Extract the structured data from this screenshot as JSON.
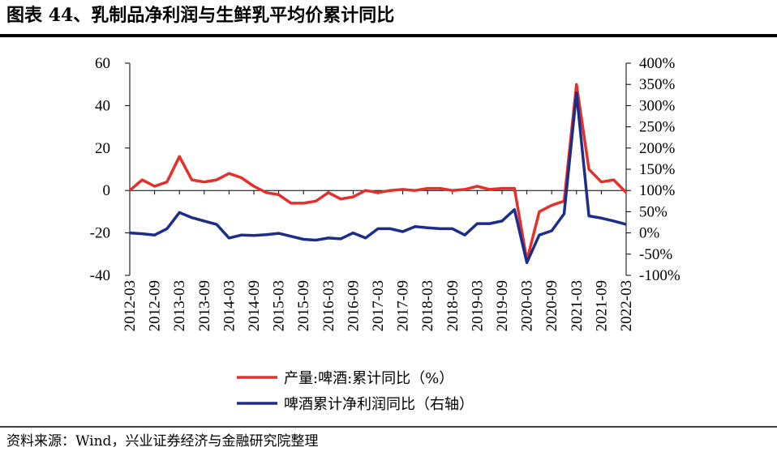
{
  "chart_data": {
    "type": "line",
    "title": "图表 44、乳制品净利润与生鲜乳平均价累计同比",
    "source": "资料来源：Wind，兴业证券经济与金融研究院整理",
    "categories": [
      "2012-03",
      null,
      "2012-09",
      null,
      "2013-03",
      null,
      "2013-09",
      null,
      "2014-03",
      null,
      "2014-09",
      null,
      "2015-03",
      null,
      "2015-09",
      null,
      "2016-03",
      null,
      "2016-09",
      null,
      "2017-03",
      null,
      "2017-09",
      null,
      "2018-03",
      null,
      "2018-09",
      null,
      "2019-03",
      null,
      "2019-09",
      null,
      "2020-03",
      null,
      "2020-09",
      null,
      "2021-03",
      null,
      "2021-09",
      null,
      "2022-03"
    ],
    "series": [
      {
        "name": "产量:啤酒:累计同比（%）",
        "color": "#e3302c",
        "axis": "y",
        "values": [
          0,
          5,
          2,
          4,
          16,
          5,
          4,
          5,
          8,
          6,
          2,
          -1,
          -2,
          -6,
          -6,
          -5,
          -1,
          -4,
          -3,
          0,
          -1,
          0,
          0.5,
          0,
          1,
          1,
          0,
          0.5,
          2,
          0.5,
          1,
          1,
          -33,
          -10,
          -7,
          -5,
          50,
          10,
          4,
          5,
          -1
        ]
      },
      {
        "name": "啤酒累计净利润同比（右轴）",
        "color": "#1c2d8a",
        "axis": "y2",
        "values": [
          0,
          -2,
          -5,
          10,
          48,
          36,
          28,
          20,
          -12,
          -5,
          -6,
          -4,
          -1,
          -8,
          -15,
          -17,
          -12,
          -14,
          0,
          -12,
          10,
          10,
          3,
          15,
          12,
          10,
          10,
          -5,
          22,
          22,
          28,
          55,
          -70,
          -5,
          5,
          45,
          330,
          40,
          35,
          28,
          20
        ]
      }
    ],
    "ylim": [
      -40,
      60
    ],
    "yticks": [
      -40,
      -20,
      0,
      20,
      40,
      60
    ],
    "y2lim": [
      -100,
      400
    ],
    "y2ticks": [
      {
        "value": -100,
        "label": "-100%"
      },
      {
        "value": -50,
        "label": "-50%"
      },
      {
        "value": 0,
        "label": "0%"
      },
      {
        "value": 50,
        "label": "50%"
      },
      {
        "value": 100,
        "label": "100%"
      },
      {
        "value": 150,
        "label": "150%"
      },
      {
        "value": 200,
        "label": "200%"
      },
      {
        "value": 250,
        "label": "250%"
      },
      {
        "value": 300,
        "label": "300%"
      },
      {
        "value": 350,
        "label": "350%"
      },
      {
        "value": 400,
        "label": "400%"
      }
    ]
  }
}
